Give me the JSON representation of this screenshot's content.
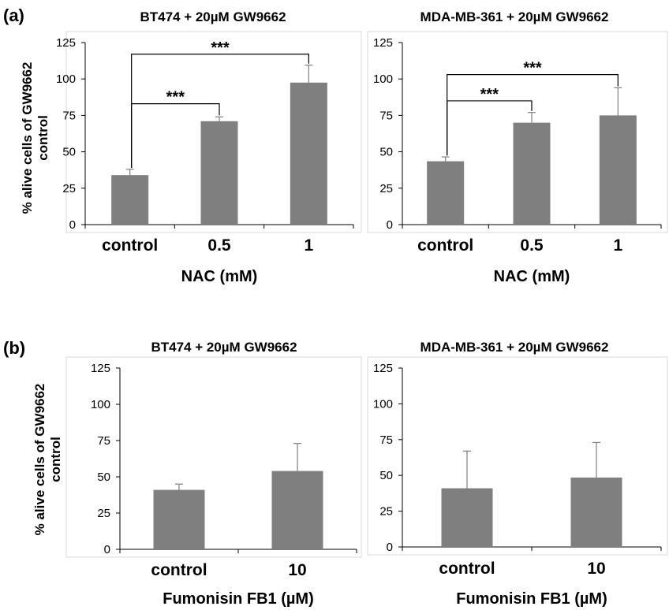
{
  "panels": [
    {
      "letter": "(a)"
    },
    {
      "letter": "(b)"
    }
  ],
  "ylabel_lines": [
    "% alive cells of GW9662",
    "control"
  ],
  "chart_data": [
    {
      "type": "bar",
      "title": "BT474 + 20µM GW9662",
      "xlabel": "NAC (mM)",
      "ylabel": "% alive cells of GW9662 control",
      "categories": [
        "control",
        "0.5",
        "1"
      ],
      "values": [
        34,
        71,
        97.5
      ],
      "errors": [
        4,
        3,
        12
      ],
      "ylim": [
        0,
        125
      ],
      "yticks": [
        "0",
        "25",
        "50",
        "75",
        "100",
        "125"
      ],
      "significance": [
        {
          "from": 0,
          "to": 1,
          "label": "***",
          "level": 83
        },
        {
          "from": 0,
          "to": 2,
          "label": "***",
          "level": 117
        }
      ]
    },
    {
      "type": "bar",
      "title": "MDA-MB-361 + 20µM GW9662",
      "xlabel": "NAC (mM)",
      "categories": [
        "control",
        "0.5",
        "1"
      ],
      "values": [
        43.5,
        70,
        75
      ],
      "errors": [
        3,
        7,
        19
      ],
      "ylim": [
        0,
        125
      ],
      "yticks": [
        "0",
        "25",
        "50",
        "75",
        "100",
        "125"
      ],
      "significance": [
        {
          "from": 0,
          "to": 1,
          "label": "***",
          "level": 85
        },
        {
          "from": 0,
          "to": 2,
          "label": "***",
          "level": 103
        }
      ]
    },
    {
      "type": "bar",
      "title": "BT474 + 20µM GW9662",
      "xlabel": "Fumonisin FB1 (µM)",
      "ylabel": "% alive cells of GW9662 control",
      "categories": [
        "control",
        "10"
      ],
      "values": [
        41,
        54
      ],
      "errors": [
        4,
        19
      ],
      "ylim": [
        0,
        125
      ],
      "yticks": [
        "0",
        "25",
        "50",
        "75",
        "100",
        "125"
      ],
      "significance": []
    },
    {
      "type": "bar",
      "title": "MDA-MB-361 + 20µM GW9662",
      "xlabel": "Fumonisin FB1 (µM)",
      "categories": [
        "control",
        "10"
      ],
      "values": [
        41,
        48.5
      ],
      "errors": [
        26,
        24.5
      ],
      "ylim": [
        0,
        125
      ],
      "yticks": [
        "0",
        "25",
        "50",
        "75",
        "100",
        "125"
      ],
      "significance": []
    }
  ]
}
